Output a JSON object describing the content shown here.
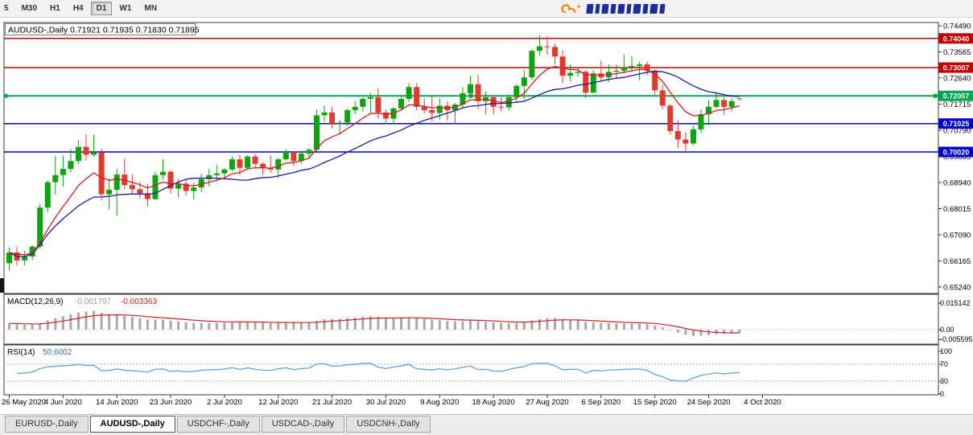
{
  "toolbar": {
    "timeframes": [
      "5",
      "M30",
      "H1",
      "H4",
      "D1",
      "W1",
      "MN"
    ],
    "active_timeframe": "D1"
  },
  "brand": {
    "colors": {
      "orange": "#f08a24",
      "blue": "#1d2d9c"
    }
  },
  "chart_data": {
    "type": "candlestick",
    "symbol": "AUDUSD-",
    "timeframe": "Daily",
    "title_line": "AUDUSD-,Daily  0.71921 0.71935 0.71830 0.71895",
    "current": {
      "open": 0.71921,
      "high": 0.71935,
      "low": 0.7183,
      "close": 0.71895
    },
    "visible_price_range": {
      "top": 0.74604,
      "bottom": 0.65009
    },
    "y_axis_ticks": [
      "0.74490",
      "0.73565",
      "0.72640",
      "0.71715",
      "0.70790",
      "0.69865",
      "0.68940",
      "0.68015",
      "0.67090",
      "0.66165",
      "0.65240"
    ],
    "horizontal_lines": [
      {
        "price": 0.7404,
        "label": "0.74040",
        "color": "#c00000",
        "selected": false
      },
      {
        "price": 0.73007,
        "label": "0.73007",
        "color": "#c00000",
        "selected": false
      },
      {
        "price": 0.72007,
        "label": "0.72007",
        "color": "#00a651",
        "selected": true
      },
      {
        "price": 0.71025,
        "label": "0.71025",
        "color": "#0000c8",
        "selected": false
      },
      {
        "price": 0.7002,
        "label": "0.70020",
        "color": "#0000c8",
        "selected": false
      }
    ],
    "date_labels": [
      "26 May 2020",
      "4 Jun 2020",
      "14 Jun 2020",
      "23 Jun 2020",
      "2 Jul 2020",
      "12 Jul 2020",
      "21 Jul 2020",
      "30 Jul 2020",
      "9 Aug 2020",
      "18 Aug 2020",
      "27 Aug 2020",
      "6 Sep 2020",
      "15 Sep 2020",
      "24 Sep 2020",
      "4 Oct 2020"
    ],
    "candle_up_color": "#0fa30f",
    "candle_down_color": "#e23b2e",
    "moving_averages": [
      {
        "name": "fast-ma",
        "type": "ema",
        "period": 8,
        "color": "#cc2020"
      },
      {
        "name": "slow-ma",
        "type": "sma",
        "period": 20,
        "color": "#1b1b9e"
      }
    ],
    "indicators": {
      "macd": {
        "label": "MACD(12,26,9)",
        "value_main": "-0.001797",
        "value_signal": "-0.003363",
        "axis_ticks": [
          "0.015142",
          "0.00",
          "-0.005595"
        ],
        "histogram_color": "#a9a9a9",
        "signal_color": "#cc2222"
      },
      "rsi": {
        "label": "RSI(14)",
        "value": "50.6002",
        "axis_ticks": [
          "100",
          "70",
          "30",
          "0"
        ],
        "levels": [
          70,
          30
        ],
        "line_color": "#5b9bd5"
      }
    },
    "candles": [
      [
        0.6608,
        0.6663,
        0.6582,
        0.6646
      ],
      [
        0.6646,
        0.6668,
        0.66,
        0.6618
      ],
      [
        0.6618,
        0.6652,
        0.6601,
        0.6632
      ],
      [
        0.6632,
        0.6672,
        0.662,
        0.6667
      ],
      [
        0.6667,
        0.6818,
        0.666,
        0.6805
      ],
      [
        0.6805,
        0.6902,
        0.6788,
        0.6895
      ],
      [
        0.6895,
        0.6987,
        0.6852,
        0.692
      ],
      [
        0.692,
        0.699,
        0.688,
        0.6942
      ],
      [
        0.6942,
        0.7012,
        0.693,
        0.697
      ],
      [
        0.697,
        0.7043,
        0.6958,
        0.702
      ],
      [
        0.702,
        0.7065,
        0.6972,
        0.6992
      ],
      [
        0.6992,
        0.7063,
        0.6985,
        0.7
      ],
      [
        0.7,
        0.7012,
        0.683,
        0.6852
      ],
      [
        0.6852,
        0.6908,
        0.6798,
        0.6868
      ],
      [
        0.6868,
        0.6942,
        0.6776,
        0.6922
      ],
      [
        0.6922,
        0.6978,
        0.687,
        0.6885
      ],
      [
        0.6885,
        0.6922,
        0.6854,
        0.687
      ],
      [
        0.687,
        0.6896,
        0.6838,
        0.6856
      ],
      [
        0.6856,
        0.689,
        0.6808,
        0.6835
      ],
      [
        0.6835,
        0.6932,
        0.6832,
        0.692
      ],
      [
        0.692,
        0.6976,
        0.6904,
        0.6932
      ],
      [
        0.6932,
        0.6936,
        0.6855,
        0.6872
      ],
      [
        0.6872,
        0.6906,
        0.6842,
        0.689
      ],
      [
        0.689,
        0.6902,
        0.6848,
        0.6864
      ],
      [
        0.6864,
        0.6892,
        0.6834,
        0.6876
      ],
      [
        0.6876,
        0.6926,
        0.686,
        0.6906
      ],
      [
        0.6906,
        0.6942,
        0.688,
        0.692
      ],
      [
        0.692,
        0.6956,
        0.69,
        0.6926
      ],
      [
        0.6926,
        0.6946,
        0.691,
        0.694
      ],
      [
        0.694,
        0.6986,
        0.6934,
        0.6976
      ],
      [
        0.6976,
        0.6992,
        0.692,
        0.6946
      ],
      [
        0.6946,
        0.699,
        0.694,
        0.6986
      ],
      [
        0.6986,
        0.6996,
        0.6944,
        0.696
      ],
      [
        0.696,
        0.6966,
        0.692,
        0.6946
      ],
      [
        0.6946,
        0.699,
        0.6928,
        0.694
      ],
      [
        0.694,
        0.6982,
        0.691,
        0.6976
      ],
      [
        0.6976,
        0.7012,
        0.697,
        0.7002
      ],
      [
        0.7002,
        0.7006,
        0.6954,
        0.697
      ],
      [
        0.697,
        0.7002,
        0.696,
        0.6996
      ],
      [
        0.6996,
        0.7016,
        0.698,
        0.701
      ],
      [
        0.701,
        0.7152,
        0.7004,
        0.7132
      ],
      [
        0.7132,
        0.7166,
        0.711,
        0.7142
      ],
      [
        0.7142,
        0.7162,
        0.7086,
        0.7102
      ],
      [
        0.7102,
        0.7116,
        0.7064,
        0.7106
      ],
      [
        0.7106,
        0.7156,
        0.7094,
        0.715
      ],
      [
        0.715,
        0.7182,
        0.7136,
        0.7162
      ],
      [
        0.7162,
        0.7196,
        0.7146,
        0.719
      ],
      [
        0.719,
        0.7212,
        0.7136,
        0.7196
      ],
      [
        0.7196,
        0.7228,
        0.712,
        0.7142
      ],
      [
        0.7142,
        0.7152,
        0.71,
        0.712
      ],
      [
        0.712,
        0.7162,
        0.71,
        0.7156
      ],
      [
        0.7156,
        0.7202,
        0.715,
        0.719
      ],
      [
        0.719,
        0.7246,
        0.718,
        0.7232
      ],
      [
        0.7232,
        0.7246,
        0.715,
        0.7162
      ],
      [
        0.7162,
        0.7192,
        0.7138,
        0.715
      ],
      [
        0.715,
        0.7202,
        0.711,
        0.714
      ],
      [
        0.714,
        0.7192,
        0.7116,
        0.7166
      ],
      [
        0.7166,
        0.7182,
        0.7114,
        0.715
      ],
      [
        0.715,
        0.7176,
        0.7104,
        0.717
      ],
      [
        0.717,
        0.7232,
        0.716,
        0.721
      ],
      [
        0.721,
        0.7272,
        0.72,
        0.7242
      ],
      [
        0.7242,
        0.7276,
        0.7154,
        0.7182
      ],
      [
        0.7182,
        0.7216,
        0.7136,
        0.7196
      ],
      [
        0.7196,
        0.7202,
        0.7136,
        0.7162
      ],
      [
        0.7162,
        0.7196,
        0.7146,
        0.716
      ],
      [
        0.716,
        0.7206,
        0.715,
        0.7196
      ],
      [
        0.7196,
        0.7242,
        0.718,
        0.7236
      ],
      [
        0.7236,
        0.7292,
        0.7186,
        0.7266
      ],
      [
        0.7266,
        0.7366,
        0.7256,
        0.736
      ],
      [
        0.736,
        0.7414,
        0.7344,
        0.7376
      ],
      [
        0.7376,
        0.7413,
        0.7346,
        0.7374
      ],
      [
        0.7374,
        0.7386,
        0.7314,
        0.734
      ],
      [
        0.734,
        0.7362,
        0.7246,
        0.7272
      ],
      [
        0.7272,
        0.7312,
        0.7252,
        0.7282
      ],
      [
        0.7282,
        0.7302,
        0.7268,
        0.7286
      ],
      [
        0.7286,
        0.7292,
        0.7192,
        0.7212
      ],
      [
        0.7212,
        0.7292,
        0.721,
        0.728
      ],
      [
        0.728,
        0.7326,
        0.7254,
        0.7266
      ],
      [
        0.7266,
        0.7312,
        0.725,
        0.7286
      ],
      [
        0.7286,
        0.7312,
        0.7264,
        0.729
      ],
      [
        0.729,
        0.7346,
        0.728,
        0.7302
      ],
      [
        0.7302,
        0.734,
        0.7286,
        0.7306
      ],
      [
        0.7306,
        0.7322,
        0.7256,
        0.7312
      ],
      [
        0.7312,
        0.7322,
        0.7274,
        0.729
      ],
      [
        0.729,
        0.7294,
        0.7204,
        0.722
      ],
      [
        0.722,
        0.7242,
        0.7154,
        0.7166
      ],
      [
        0.7166,
        0.7172,
        0.7064,
        0.7076
      ],
      [
        0.7076,
        0.7116,
        0.7016,
        0.7046
      ],
      [
        0.7046,
        0.7072,
        0.7006,
        0.7032
      ],
      [
        0.7032,
        0.7096,
        0.7026,
        0.7082
      ],
      [
        0.7082,
        0.7152,
        0.707,
        0.7136
      ],
      [
        0.7136,
        0.7186,
        0.7096,
        0.7162
      ],
      [
        0.7162,
        0.721,
        0.7156,
        0.7186
      ],
      [
        0.7186,
        0.7196,
        0.7134,
        0.7162
      ],
      [
        0.7162,
        0.7192,
        0.7146,
        0.7182
      ],
      [
        0.71921,
        0.71935,
        0.7183,
        0.71895
      ]
    ]
  },
  "tabs": {
    "items": [
      "EURUSD-,Daily",
      "AUDUSD-,Daily",
      "USDCHF-,Daily",
      "USDCAD-,Daily",
      "USDCNH-,Daily"
    ],
    "active": "AUDUSD-,Daily"
  }
}
